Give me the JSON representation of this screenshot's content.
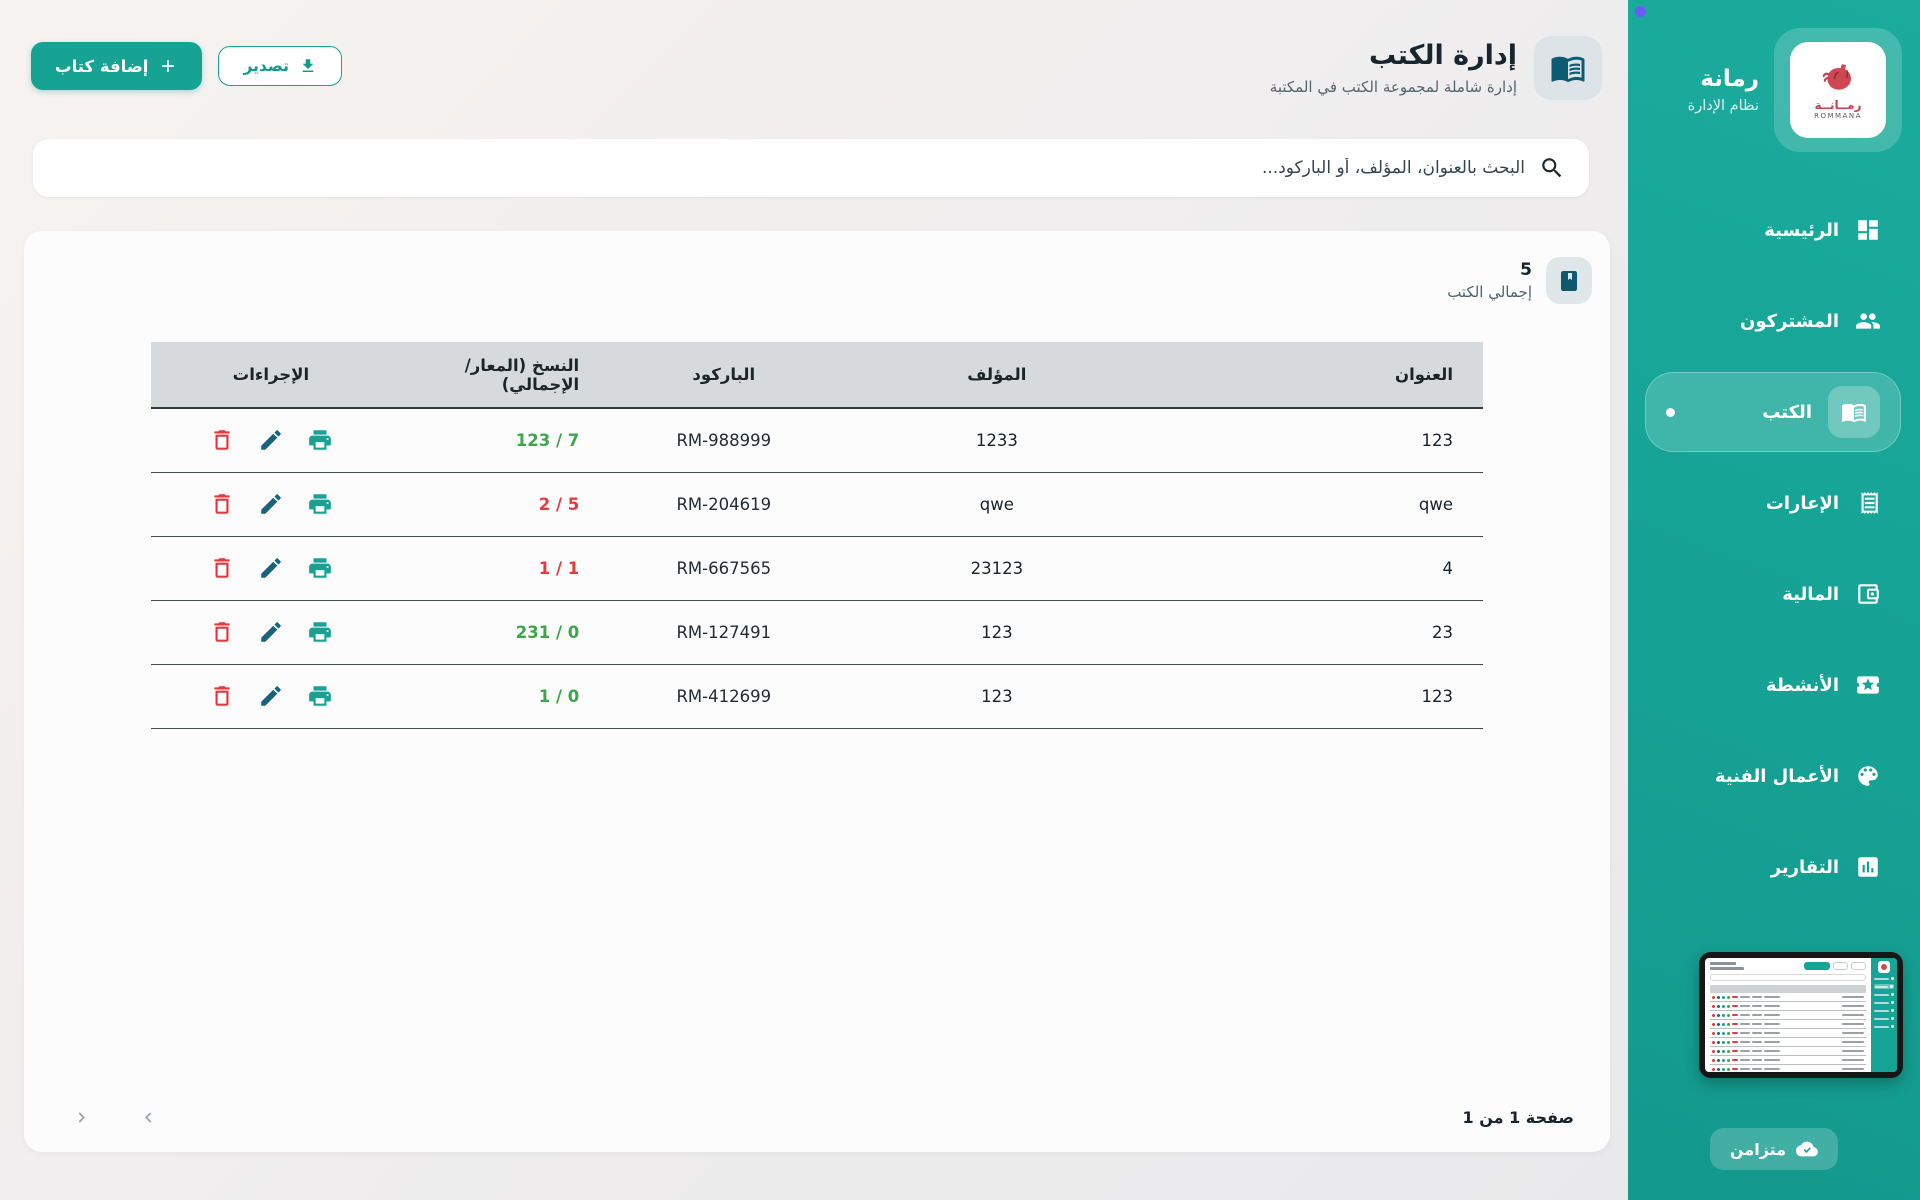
{
  "brand": {
    "name": "رمانة",
    "subtitle": "نظام الإدارة",
    "logo_caption": "رمــانــة",
    "logo_caption_en": "ROMMANA"
  },
  "sidebar": {
    "items": [
      {
        "key": "home",
        "label": "الرئيسية",
        "icon": "dashboard-icon",
        "active": false
      },
      {
        "key": "members",
        "label": "المشتركون",
        "icon": "people-icon",
        "active": false
      },
      {
        "key": "books",
        "label": "الكتب",
        "icon": "book-icon",
        "active": true
      },
      {
        "key": "loans",
        "label": "الإعارات",
        "icon": "receipt-icon",
        "active": false
      },
      {
        "key": "finance",
        "label": "المالية",
        "icon": "wallet-icon",
        "active": false
      },
      {
        "key": "activities",
        "label": "الأنشطة",
        "icon": "ticket-star-icon",
        "active": false
      },
      {
        "key": "artworks",
        "label": "الأعمال الفنية",
        "icon": "palette-icon",
        "active": false
      },
      {
        "key": "reports",
        "label": "التقارير",
        "icon": "bar-chart-icon",
        "active": false
      }
    ]
  },
  "sync": {
    "label": "متزامن"
  },
  "header": {
    "title": "إدارة الكتب",
    "subtitle": "إدارة شاملة لمجموعة الكتب في المكتبة",
    "add_label": "إضافة كتاب",
    "export_label": "تصدير"
  },
  "search": {
    "placeholder": "البحث بالعنوان، المؤلف، أو الباركود..."
  },
  "stats": {
    "value": "5",
    "label": "إجمالي الكتب"
  },
  "table": {
    "columns": [
      "العنوان",
      "المؤلف",
      "الباركود",
      "النسخ (المعار/الإجمالي)",
      "الإجراءات"
    ],
    "rows": [
      {
        "title": "123",
        "author": "1233",
        "barcode": "RM-988999",
        "copies": "123 / 7",
        "copies_color": "green"
      },
      {
        "title": "qwe",
        "author": "qwe",
        "barcode": "RM-204619",
        "copies": "2 / 5",
        "copies_color": "red"
      },
      {
        "title": "4",
        "author": "23123",
        "barcode": "RM-667565",
        "copies": "1 / 1",
        "copies_color": "red"
      },
      {
        "title": "23",
        "author": "123",
        "barcode": "RM-127491",
        "copies": "231 / 0",
        "copies_color": "green"
      },
      {
        "title": "123",
        "author": "123",
        "barcode": "RM-412699",
        "copies": "1 / 0",
        "copies_color": "green"
      }
    ]
  },
  "pagination": {
    "label": "صفحة 1 من 1"
  },
  "colors": {
    "sidebar_teal": "#16A496",
    "accent_teal": "#16A394",
    "dark_icon_teal": "#0D5B70",
    "green_ok": "#3FA54A",
    "red_alert": "#E23B41",
    "edit_blue": "#19637E",
    "table_header_gray": "#D6DADC",
    "notification_purple": "#6F5BF5",
    "logo_red": "#CF4752"
  }
}
